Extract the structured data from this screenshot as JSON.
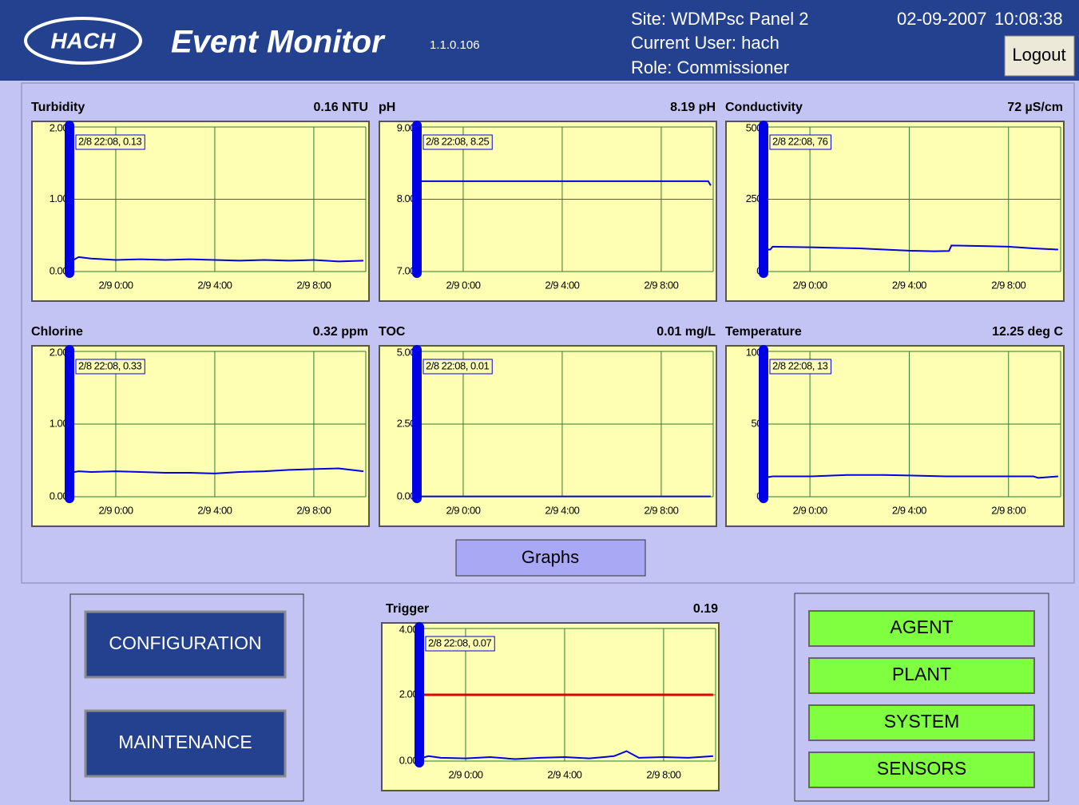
{
  "header": {
    "logo": "HACH",
    "app_title": "Event Monitor",
    "version": "1.1.0.106",
    "site": "Site: WDMPsc Panel 2",
    "user": "Current User: hach",
    "role": "Role: Commissioner",
    "date": "02-09-2007",
    "time": "10:08:38",
    "logout": "Logout"
  },
  "chart_data": [
    {
      "type": "line",
      "title": "Turbidity",
      "reading": "0.16 NTU",
      "cursor_label": "2/8 22:08, 0.13",
      "x": [
        -1.87,
        -1.5,
        -1,
        0,
        1,
        2,
        3,
        4,
        5,
        6,
        7,
        8,
        9,
        10
      ],
      "series": [
        {
          "color": "#0000e0",
          "values": [
            0.13,
            0.2,
            0.18,
            0.16,
            0.17,
            0.16,
            0.17,
            0.16,
            0.15,
            0.16,
            0.15,
            0.16,
            0.14,
            0.15
          ]
        }
      ],
      "ylim": [
        0,
        2
      ],
      "yticks": [
        {
          "value": 0,
          "label": "0.00"
        },
        {
          "value": 1,
          "label": "1.00"
        },
        {
          "value": 2,
          "label": "2.00"
        }
      ],
      "xlim": [
        -1.87,
        10.1
      ],
      "xticks": [
        {
          "value": 0,
          "label": "2/9 0:00"
        },
        {
          "value": 4,
          "label": "2/9 4:00"
        },
        {
          "value": 8,
          "label": "2/9 8:00"
        }
      ],
      "grid": true
    },
    {
      "type": "line",
      "title": "pH",
      "reading": "8.19 pH",
      "cursor_label": "2/8 22:08, 8.25",
      "x": [
        -1.87,
        -1.5,
        -1,
        0,
        1,
        2,
        3,
        4,
        5,
        6,
        7,
        8,
        9,
        9.9,
        10
      ],
      "series": [
        {
          "color": "#0000e0",
          "values": [
            8.25,
            8.25,
            8.25,
            8.25,
            8.25,
            8.25,
            8.25,
            8.25,
            8.25,
            8.25,
            8.25,
            8.25,
            8.25,
            8.25,
            8.19
          ]
        }
      ],
      "ylim": [
        7,
        9
      ],
      "yticks": [
        {
          "value": 7,
          "label": "7.00"
        },
        {
          "value": 8,
          "label": "8.00"
        },
        {
          "value": 9,
          "label": "9.00"
        }
      ],
      "xlim": [
        -1.87,
        10.1
      ],
      "xticks": [
        {
          "value": 0,
          "label": "2/9 0:00"
        },
        {
          "value": 4,
          "label": "2/9 4:00"
        },
        {
          "value": 8,
          "label": "2/9 8:00"
        }
      ],
      "grid": true
    },
    {
      "type": "line",
      "title": "Conductivity",
      "reading": "72 µS/cm",
      "cursor_label": "2/8 22:08, 76",
      "x": [
        -1.87,
        -1.6,
        -1.5,
        0,
        1,
        2,
        3,
        4,
        5,
        5.6,
        5.7,
        7,
        8,
        9,
        10
      ],
      "series": [
        {
          "color": "#0000e0",
          "values": [
            76,
            76,
            86,
            84,
            82,
            80,
            76,
            72,
            70,
            71,
            90,
            88,
            86,
            80,
            76
          ]
        }
      ],
      "ylim": [
        0,
        500
      ],
      "yticks": [
        0,
        250,
        500
      ],
      "xlim": [
        -1.87,
        10.1
      ],
      "xticks": [
        {
          "value": 0,
          "label": "2/9 0:00"
        },
        {
          "value": 4,
          "label": "2/9 4:00"
        },
        {
          "value": 8,
          "label": "2/9 8:00"
        }
      ],
      "grid": true
    },
    {
      "type": "line",
      "title": "Chlorine",
      "reading": "0.32 ppm",
      "cursor_label": "2/8 22:08, 0.33",
      "x": [
        -1.87,
        -1.5,
        -1,
        0,
        1,
        2,
        3,
        4,
        5,
        6,
        7,
        8,
        9,
        10
      ],
      "series": [
        {
          "color": "#0000e0",
          "values": [
            0.33,
            0.35,
            0.34,
            0.35,
            0.34,
            0.33,
            0.33,
            0.32,
            0.34,
            0.35,
            0.37,
            0.38,
            0.39,
            0.35
          ]
        }
      ],
      "ylim": [
        0,
        2
      ],
      "yticks": [
        {
          "value": 0,
          "label": "0.00"
        },
        {
          "value": 1,
          "label": "1.00"
        },
        {
          "value": 2,
          "label": "2.00"
        }
      ],
      "xlim": [
        -1.87,
        10.1
      ],
      "xticks": [
        {
          "value": 0,
          "label": "2/9 0:00"
        },
        {
          "value": 4,
          "label": "2/9 4:00"
        },
        {
          "value": 8,
          "label": "2/9 8:00"
        }
      ],
      "grid": true
    },
    {
      "type": "line",
      "title": "TOC",
      "reading": "0.01 mg/L",
      "cursor_label": "2/8 22:08, 0.01",
      "x": [
        -1.87,
        10
      ],
      "series": [
        {
          "color": "#0000e0",
          "values": [
            0.01,
            0.01
          ]
        }
      ],
      "ylim": [
        0,
        5
      ],
      "yticks": [
        {
          "value": 0,
          "label": "0.00"
        },
        {
          "value": 2.5,
          "label": "2.50"
        },
        {
          "value": 5,
          "label": "5.00"
        }
      ],
      "xlim": [
        -1.87,
        10.1
      ],
      "xticks": [
        {
          "value": 0,
          "label": "2/9 0:00"
        },
        {
          "value": 4,
          "label": "2/9 4:00"
        },
        {
          "value": 8,
          "label": "2/9 8:00"
        }
      ],
      "grid": true
    },
    {
      "type": "line",
      "title": "Temperature",
      "reading": "12.25 deg C",
      "cursor_label": "2/8 22:08, 13",
      "x": [
        -1.87,
        -1.5,
        0,
        1.5,
        3,
        5.5,
        7,
        9,
        9.2,
        10
      ],
      "series": [
        {
          "color": "#0000e0",
          "values": [
            13,
            14,
            14,
            15,
            15,
            14,
            14,
            14,
            13,
            14
          ]
        }
      ],
      "ylim": [
        0,
        100
      ],
      "yticks": [
        0,
        50,
        100
      ],
      "xlim": [
        -1.87,
        10.1
      ],
      "xticks": [
        {
          "value": 0,
          "label": "2/9 0:00"
        },
        {
          "value": 4,
          "label": "2/9 4:00"
        },
        {
          "value": 8,
          "label": "2/9 8:00"
        }
      ],
      "grid": true
    },
    {
      "type": "line",
      "title": "Trigger",
      "reading": "0.19",
      "cursor_label": "2/8 22:08, 0.07",
      "x": [
        -1.87,
        -1.5,
        -1,
        0,
        1,
        2,
        3,
        4,
        5,
        6,
        6.5,
        7,
        8,
        9,
        10
      ],
      "series": [
        {
          "color": "#0000e0",
          "values": [
            0.07,
            0.15,
            0.1,
            0.08,
            0.12,
            0.06,
            0.1,
            0.12,
            0.08,
            0.15,
            0.3,
            0.1,
            0.12,
            0.1,
            0.15
          ]
        },
        {
          "color": "#e00000",
          "values": [
            2,
            2,
            2,
            2,
            2,
            2,
            2,
            2,
            2,
            2,
            2,
            2,
            2,
            2,
            2
          ]
        }
      ],
      "ylim": [
        0,
        4
      ],
      "yticks": [
        {
          "value": 0,
          "label": "0.00"
        },
        {
          "value": 2,
          "label": "2.00"
        },
        {
          "value": 4,
          "label": "4.00"
        }
      ],
      "xlim": [
        -1.87,
        10.1
      ],
      "xticks": [
        {
          "value": 0,
          "label": "2/9 0:00"
        },
        {
          "value": 4,
          "label": "2/9 4:00"
        },
        {
          "value": 8,
          "label": "2/9 8:00"
        }
      ],
      "grid": true
    }
  ],
  "graphs_button": "Graphs",
  "left_buttons": [
    "CONFIGURATION",
    "MAINTENANCE"
  ],
  "right_buttons": [
    "AGENT",
    "PLANT",
    "SYSTEM",
    "SENSORS"
  ]
}
